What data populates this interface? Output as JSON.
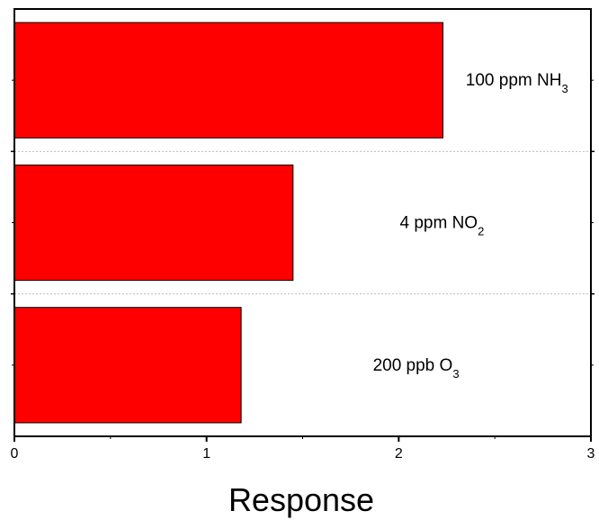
{
  "chart_data": {
    "type": "bar",
    "orientation": "horizontal",
    "categories": [
      {
        "label": "100 ppm NH",
        "subscript": "3"
      },
      {
        "label": "4 ppm NO",
        "subscript": "2"
      },
      {
        "label": "200 ppb O",
        "subscript": "3"
      }
    ],
    "values": [
      2.23,
      1.45,
      1.18
    ],
    "xlabel": "Response",
    "xlim": [
      0,
      3
    ],
    "xticks": [
      "0",
      "1",
      "2",
      "3"
    ],
    "grid": "dotted category separators",
    "bar_color": "#ff0000",
    "bar_edge_color": "#000000"
  }
}
